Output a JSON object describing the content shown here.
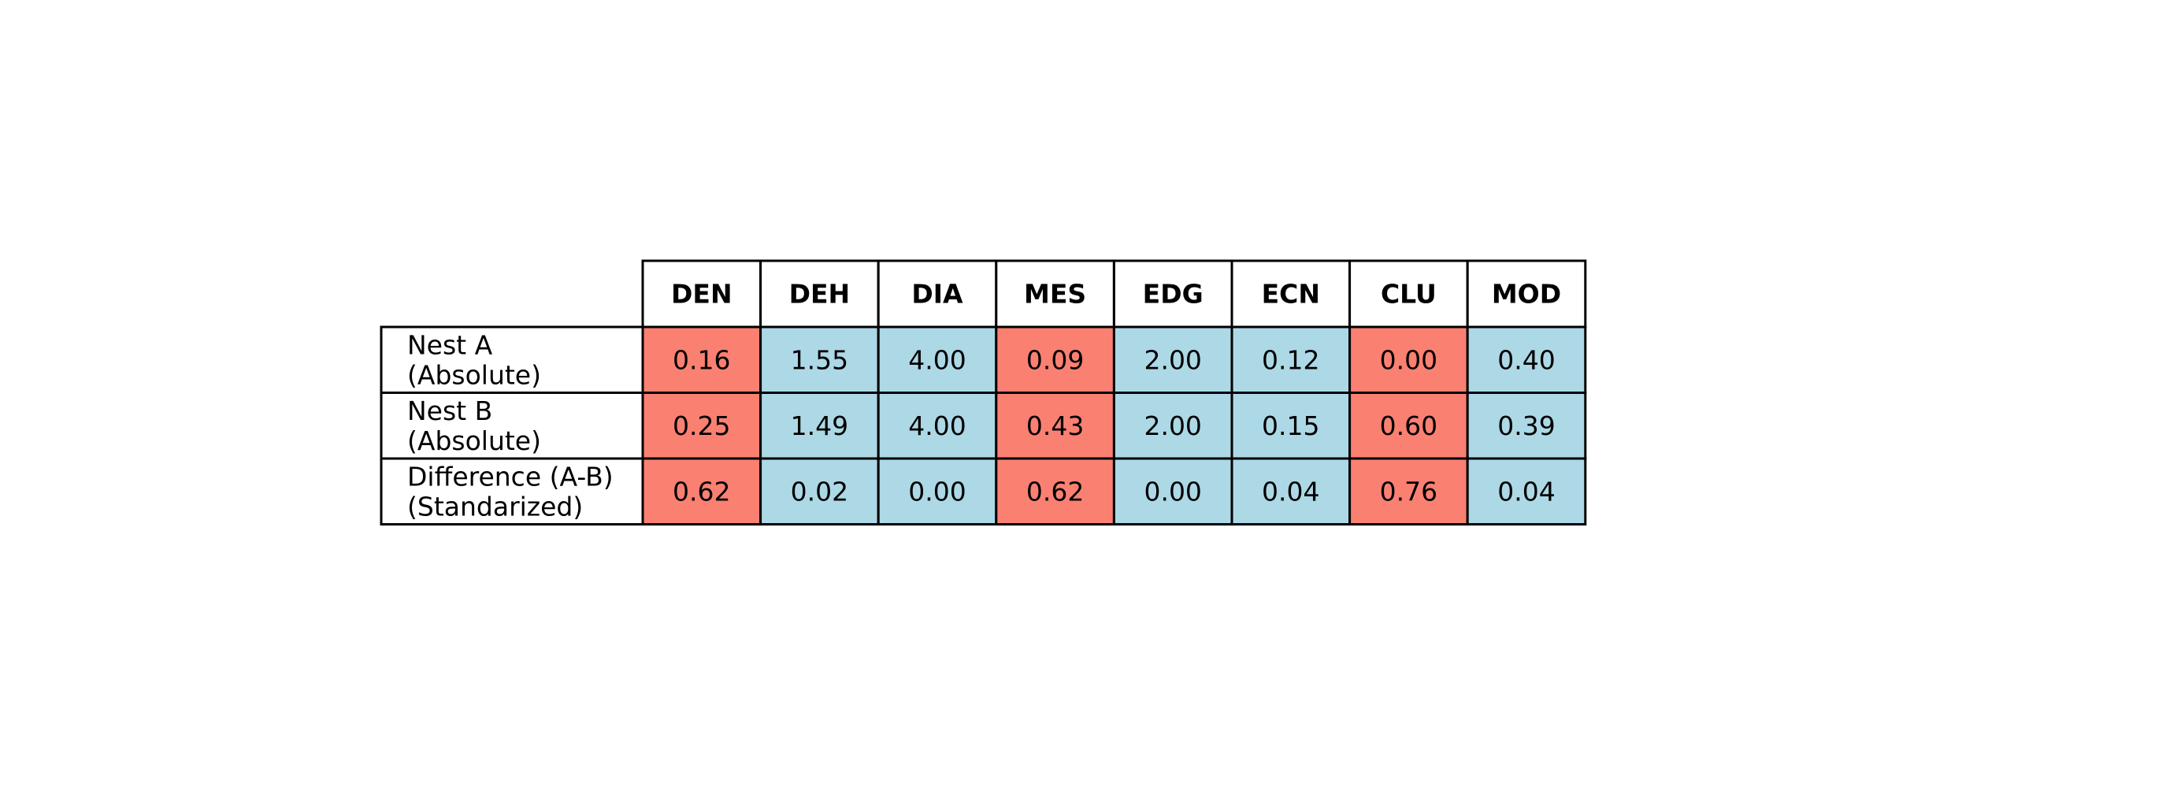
{
  "chart_data": {
    "type": "table",
    "columns": [
      "DEN",
      "DEH",
      "DIA",
      "MES",
      "EDG",
      "ECN",
      "CLU",
      "MOD"
    ],
    "rows": [
      {
        "label_lines": [
          "Nest A",
          "(Absolute)"
        ],
        "values": [
          "0.16",
          "1.55",
          "4.00",
          "0.09",
          "2.00",
          "0.12",
          "0.00",
          "0.40"
        ]
      },
      {
        "label_lines": [
          "Nest B",
          "(Absolute)"
        ],
        "values": [
          "0.25",
          "1.49",
          "4.00",
          "0.43",
          "2.00",
          "0.15",
          "0.60",
          "0.39"
        ]
      },
      {
        "label_lines": [
          "Difference (A-B)",
          "(Standarized)"
        ],
        "values": [
          "0.62",
          "0.02",
          "0.00",
          "0.62",
          "0.00",
          "0.04",
          "0.76",
          "0.04"
        ]
      }
    ],
    "column_highlight": [
      "salmon",
      "lightblue",
      "lightblue",
      "salmon",
      "lightblue",
      "lightblue",
      "salmon",
      "lightblue"
    ],
    "colors": {
      "salmon": "#fa8072",
      "lightblue": "#add8e6",
      "label_bg": "#ffffff",
      "header_bg": "#ffffff",
      "border": "#000000",
      "text": "#000000"
    }
  }
}
